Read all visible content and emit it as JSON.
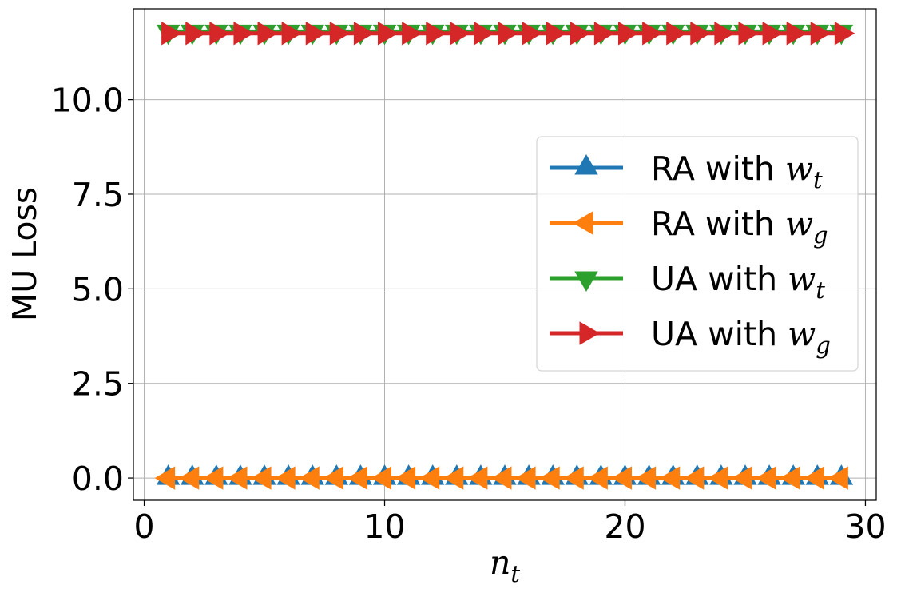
{
  "chart_data": {
    "type": "line",
    "x": [
      1,
      2,
      3,
      4,
      5,
      6,
      7,
      8,
      9,
      10,
      11,
      12,
      13,
      14,
      15,
      16,
      17,
      18,
      19,
      20,
      21,
      22,
      23,
      24,
      25,
      26,
      27,
      28,
      29
    ],
    "series": [
      {
        "name": "RA with w_t",
        "legend_prefix": "RA with ",
        "legend_var": "w",
        "legend_sub": "t",
        "color": "#1f77b4",
        "marker": "triangle-up",
        "values": [
          0,
          0,
          0,
          0,
          0,
          0,
          0,
          0,
          0,
          0,
          0,
          0,
          0,
          0,
          0,
          0,
          0,
          0,
          0,
          0,
          0,
          0,
          0,
          0,
          0,
          0,
          0,
          0,
          0
        ]
      },
      {
        "name": "RA with w_g",
        "legend_prefix": "RA with ",
        "legend_var": "w",
        "legend_sub": "g",
        "color": "#ff7f0e",
        "marker": "triangle-left",
        "values": [
          0,
          0,
          0,
          0,
          0,
          0,
          0,
          0,
          0,
          0,
          0,
          0,
          0,
          0,
          0,
          0,
          0,
          0,
          0,
          0,
          0,
          0,
          0,
          0,
          0,
          0,
          0,
          0,
          0
        ]
      },
      {
        "name": "UA with w_t",
        "legend_prefix": "UA with ",
        "legend_var": "w",
        "legend_sub": "t",
        "color": "#2ca02c",
        "marker": "triangle-down",
        "values": [
          11.8,
          11.8,
          11.8,
          11.8,
          11.8,
          11.8,
          11.8,
          11.8,
          11.8,
          11.8,
          11.8,
          11.8,
          11.8,
          11.8,
          11.8,
          11.8,
          11.8,
          11.8,
          11.8,
          11.8,
          11.8,
          11.8,
          11.8,
          11.8,
          11.8,
          11.8,
          11.8,
          11.8,
          11.8
        ]
      },
      {
        "name": "UA with w_g",
        "legend_prefix": "UA with ",
        "legend_var": "w",
        "legend_sub": "g",
        "color": "#d62728",
        "marker": "triangle-right",
        "values": [
          11.75,
          11.75,
          11.75,
          11.75,
          11.75,
          11.75,
          11.75,
          11.75,
          11.75,
          11.75,
          11.75,
          11.75,
          11.75,
          11.75,
          11.75,
          11.75,
          11.75,
          11.75,
          11.75,
          11.75,
          11.75,
          11.75,
          11.75,
          11.75,
          11.75,
          11.75,
          11.75,
          11.75,
          11.75
        ]
      }
    ],
    "title": "",
    "xlabel_var": "n",
    "xlabel_sub": "t",
    "ylabel": "MU Loss",
    "xlim": [
      -0.45,
      30.45
    ],
    "ylim": [
      -0.59,
      12.4
    ],
    "xticks": [
      0,
      10,
      20,
      30
    ],
    "xtick_labels": [
      "0",
      "10",
      "20",
      "30"
    ],
    "yticks": [
      0,
      2.5,
      5,
      7.5,
      10
    ],
    "ytick_labels": [
      "0.0",
      "2.5",
      "5.0",
      "7.5",
      "10.0"
    ],
    "grid": true,
    "legend_position": "center-right"
  }
}
